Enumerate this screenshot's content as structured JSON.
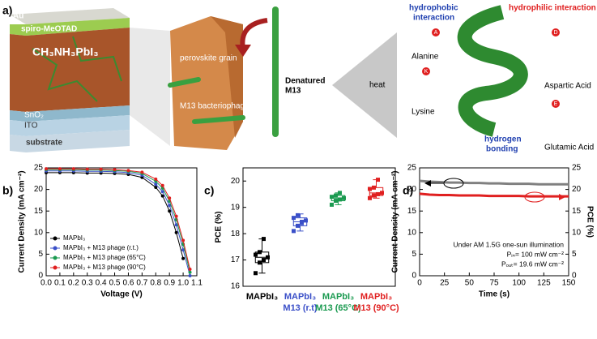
{
  "diagram": {
    "panel": "a)",
    "au": "Au",
    "spiro": "spiro-MeOTAD",
    "perovskite": "CH₃NH₃PbI₃",
    "sno2": "SnO₂",
    "ito": "ITO",
    "substrate": "substrate",
    "grain": "perovskite grain",
    "phage": "M13 bacteriophage",
    "denatured": [
      "Denatured",
      "M13"
    ],
    "heat": "heat",
    "hydrophobic": [
      "hydrophobic",
      "interaction"
    ],
    "hydrophilic": "hydrophilic interaction",
    "hbond": [
      "hydrogen",
      "bonding"
    ],
    "alanine": "Alanine",
    "lysine": "Lysine",
    "aspartic": "Aspartic Acid",
    "glutamic": "Glutamic Acid",
    "letters": [
      "A",
      "K",
      "D",
      "E"
    ]
  },
  "chart_data": [
    {
      "type": "line",
      "panel": "b)",
      "xlabel": "Voltage (V)",
      "ylabel": "Current Density (mA cm⁻²)",
      "x": [
        0,
        0.1,
        0.2,
        0.3,
        0.4,
        0.5,
        0.6,
        0.7,
        0.8,
        0.85,
        0.9,
        0.95,
        1.0,
        1.05
      ],
      "series": [
        {
          "name": "MAPbI₃",
          "color": "#000000",
          "values": [
            23.9,
            23.9,
            23.9,
            23.8,
            23.8,
            23.7,
            23.5,
            22.8,
            20.5,
            18.5,
            15.0,
            10.0,
            4.0,
            null
          ]
        },
        {
          "name": "MAPbI₃ + M13 phage (r.t.)",
          "color": "#3a4fc8",
          "values": [
            24.3,
            24.3,
            24.3,
            24.2,
            24.2,
            24.1,
            23.9,
            23.3,
            21.2,
            19.5,
            16.3,
            11.8,
            6.0,
            0.0
          ]
        },
        {
          "name": "MAPbI₃ + M13 phage (65°C)",
          "color": "#1a9a50",
          "values": [
            24.6,
            24.6,
            24.6,
            24.5,
            24.5,
            24.4,
            24.2,
            23.7,
            21.9,
            20.3,
            17.3,
            13.0,
            7.3,
            0.8
          ]
        },
        {
          "name": "MAPbI₃ + M13 phage (90°C)",
          "color": "#e02020",
          "values": [
            24.8,
            24.8,
            24.8,
            24.7,
            24.7,
            24.6,
            24.4,
            24.0,
            22.4,
            20.9,
            18.0,
            13.8,
            8.2,
            1.5
          ]
        }
      ],
      "xlim": [
        0,
        1.1
      ],
      "xticks": [
        {
          "value": 0,
          "label": "0.0"
        },
        0.1,
        0.2,
        0.3,
        0.4,
        0.5,
        0.6,
        0.7,
        0.8,
        0.9,
        {
          "value": 1,
          "label": "1.0"
        },
        1.1
      ],
      "ylim": [
        0,
        25
      ],
      "yticks": [
        0,
        5,
        10,
        15,
        20,
        25
      ],
      "legend": "lower left"
    },
    {
      "type": "box",
      "panel": "c)",
      "ylabel": "PCE (%)",
      "categories": [
        [
          "MAPbI₃"
        ],
        [
          "MAPbI₃",
          "M13 (r.t)"
        ],
        [
          "MAPbI₃",
          "M13 (65°C)"
        ],
        [
          "MAPbI₃",
          "M13 (90°C)"
        ]
      ],
      "series": [
        {
          "color": "#000000",
          "min": 16.5,
          "q1": 16.9,
          "median": 17.1,
          "q3": 17.3,
          "max": 17.8,
          "points": [
            16.5,
            16.9,
            17.0,
            17.1,
            17.2,
            17.3,
            17.8
          ]
        },
        {
          "color": "#3a4fc8",
          "min": 18.1,
          "q1": 18.3,
          "median": 18.45,
          "q3": 18.6,
          "max": 18.75,
          "points": [
            18.1,
            18.3,
            18.4,
            18.5,
            18.6,
            18.7,
            18.45
          ]
        },
        {
          "color": "#1a9a50",
          "min": 19.1,
          "q1": 19.25,
          "median": 19.35,
          "q3": 19.45,
          "max": 19.55,
          "points": [
            19.1,
            19.25,
            19.3,
            19.35,
            19.4,
            19.45,
            19.55
          ]
        },
        {
          "color": "#e02020",
          "min": 19.35,
          "q1": 19.45,
          "median": 19.55,
          "q3": 19.75,
          "max": 20.05,
          "points": [
            19.35,
            19.45,
            19.5,
            19.55,
            19.7,
            19.75,
            20.05
          ]
        }
      ],
      "ylim": [
        16,
        20.5
      ],
      "yticks": [
        16,
        17,
        18,
        19,
        20
      ]
    },
    {
      "type": "line",
      "panel": "d)",
      "xlabel": "Time (s)",
      "ylabel": "Current Density (mA cm⁻²)",
      "y2label": "PCE (%)",
      "annotations": [
        "Under AM 1.5G one-sun illumination",
        "Pᵢₙ= 100 mW cm⁻²",
        "Pₒᵤₜ= 19.6 mW cm⁻²"
      ],
      "x": [
        0,
        10,
        20,
        30,
        40,
        50,
        60,
        70,
        80,
        90,
        100,
        110,
        120,
        130,
        140,
        150
      ],
      "series": [
        {
          "color": "#808080",
          "values": [
            22.0,
            21.8,
            21.7,
            21.6,
            21.6,
            21.5,
            21.5,
            21.4,
            21.4,
            21.3,
            21.3,
            21.3,
            21.2,
            21.2,
            21.2,
            21.2
          ]
        },
        {
          "color": "#e02020",
          "axis": "y2",
          "values": [
            19.0,
            18.8,
            18.7,
            18.7,
            18.6,
            18.6,
            18.6,
            18.5,
            18.5,
            18.5,
            18.5,
            18.4,
            18.4,
            18.4,
            18.4,
            18.4
          ]
        }
      ],
      "xlim": [
        0,
        150
      ],
      "xticks": [
        0,
        25,
        50,
        75,
        100,
        125,
        150
      ],
      "ylim": [
        0,
        25
      ],
      "yticks": [
        0,
        5,
        10,
        15,
        20,
        25
      ],
      "y2lim": [
        0,
        25
      ],
      "y2ticks": [
        0,
        5,
        10,
        15,
        20,
        25
      ]
    }
  ]
}
